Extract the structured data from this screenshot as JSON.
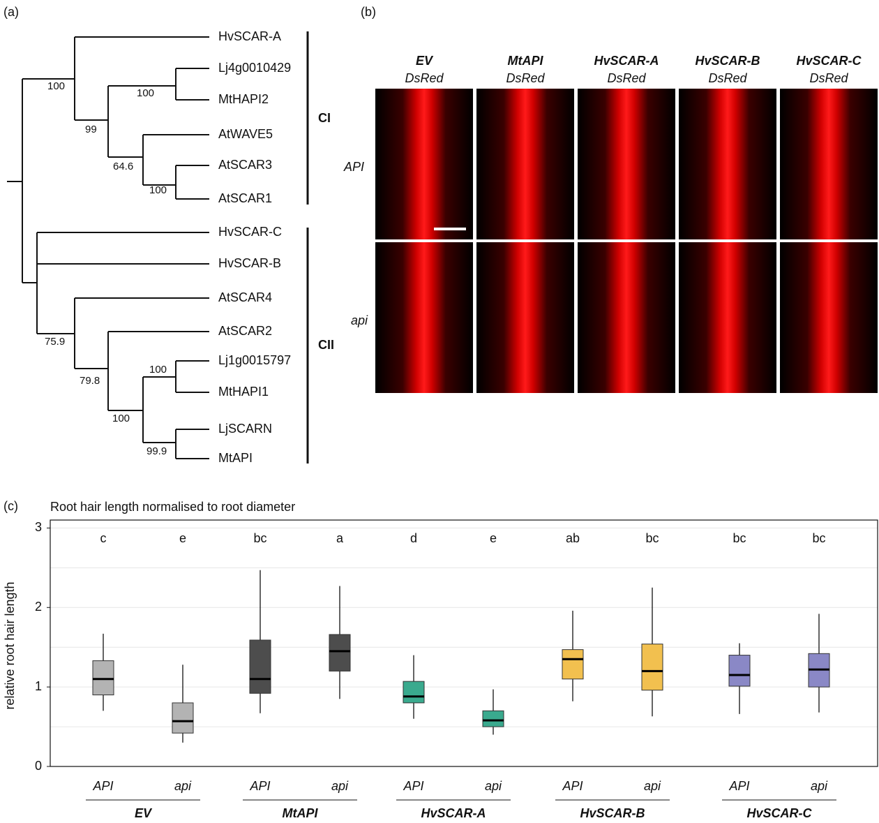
{
  "panel_labels": [
    "(a)",
    "(b)",
    "(c)"
  ],
  "tree": {
    "leaves": [
      "HvSCAR-A",
      "Lj4g0010429",
      "MtHAPI2",
      "AtWAVE5",
      "AtSCAR3",
      "AtSCAR1",
      "HvSCAR-C",
      "HvSCAR-B",
      "AtSCAR4",
      "AtSCAR2",
      "Lj1g0015797",
      "MtHAPI1",
      "LjSCARN",
      "MtAPI"
    ],
    "support": [
      "100",
      "99",
      "100",
      "64.6",
      "100",
      "75.9",
      "79.8",
      "100",
      "100",
      "99.9"
    ],
    "clades": [
      "CI",
      "CII"
    ]
  },
  "images": {
    "columns": [
      {
        "construct": "EV",
        "reporter": "DsRed"
      },
      {
        "construct": "MtAPI",
        "reporter": "DsRed"
      },
      {
        "construct": "HvSCAR-A",
        "reporter": "DsRed"
      },
      {
        "construct": "HvSCAR-B",
        "reporter": "DsRed"
      },
      {
        "construct": "HvSCAR-C",
        "reporter": "DsRed"
      }
    ],
    "rows": [
      "API",
      "api"
    ]
  },
  "chart_data": {
    "type": "box",
    "title": "Root hair length normalised to root diameter",
    "ylabel": "relative root hair length",
    "ylim": [
      0,
      3.1
    ],
    "yticks": [
      0,
      1,
      2,
      3
    ],
    "minor_grid": [
      0.5,
      1.5,
      2.5
    ],
    "series": [
      {
        "name": "EV",
        "color": "#b3b3b3",
        "categories": [
          "API",
          "api"
        ],
        "min": [
          0.7,
          0.3
        ],
        "q1": [
          0.9,
          0.42
        ],
        "median": [
          1.1,
          0.57
        ],
        "q3": [
          1.33,
          0.8
        ],
        "max": [
          1.67,
          1.28
        ],
        "letters": [
          "c",
          "e"
        ]
      },
      {
        "name": "MtAPI",
        "color": "#4d4d4d",
        "categories": [
          "API",
          "api"
        ],
        "min": [
          0.67,
          0.85
        ],
        "q1": [
          0.92,
          1.2
        ],
        "median": [
          1.1,
          1.45
        ],
        "q3": [
          1.59,
          1.66
        ],
        "max": [
          2.47,
          2.27
        ],
        "letters": [
          "bc",
          "a"
        ]
      },
      {
        "name": "HvSCAR-A",
        "color": "#3aaa8e",
        "categories": [
          "API",
          "api"
        ],
        "min": [
          0.6,
          0.4
        ],
        "q1": [
          0.8,
          0.5
        ],
        "median": [
          0.88,
          0.58
        ],
        "q3": [
          1.07,
          0.7
        ],
        "max": [
          1.4,
          0.97
        ],
        "letters": [
          "d",
          "e"
        ]
      },
      {
        "name": "HvSCAR-B",
        "color": "#f2c04f",
        "categories": [
          "API",
          "api"
        ],
        "min": [
          0.82,
          0.63
        ],
        "q1": [
          1.1,
          0.96
        ],
        "median": [
          1.35,
          1.2
        ],
        "q3": [
          1.47,
          1.54
        ],
        "max": [
          1.96,
          2.25
        ],
        "letters": [
          "ab",
          "bc"
        ]
      },
      {
        "name": "HvSCAR-C",
        "color": "#8a88c6",
        "categories": [
          "API",
          "api"
        ],
        "min": [
          0.66,
          0.68
        ],
        "q1": [
          1.01,
          1.0
        ],
        "median": [
          1.15,
          1.22
        ],
        "q3": [
          1.4,
          1.42
        ],
        "max": [
          1.55,
          1.92
        ],
        "letters": [
          "bc",
          "bc"
        ]
      }
    ]
  }
}
